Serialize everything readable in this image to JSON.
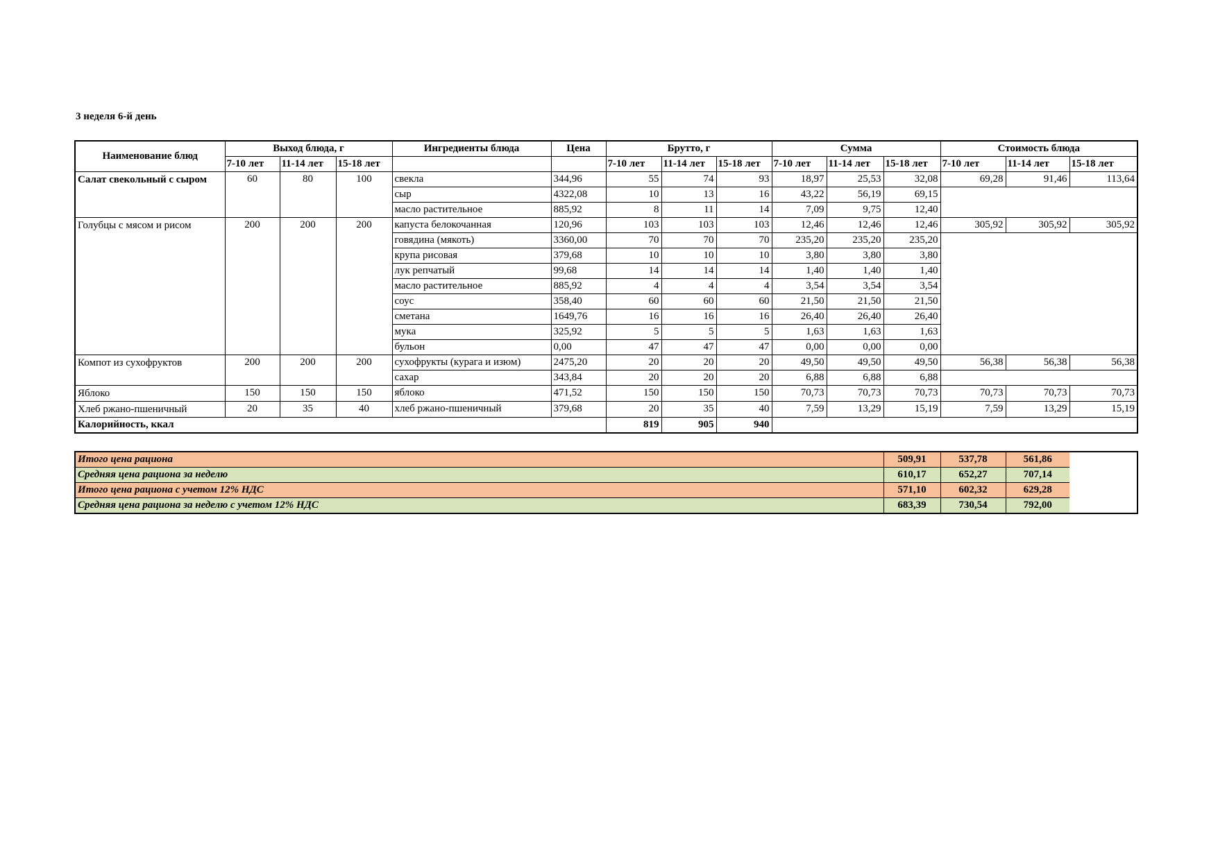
{
  "title": "3 неделя 6-й день",
  "colors": {
    "orange_row": "#F8C09A",
    "green_row": "#D8E4BC"
  },
  "headers": {
    "dish_name": "Наименование блюд",
    "yield": "Выход блюда, г",
    "ingredients": "Ингредиенты блюда",
    "price": "Цена",
    "brutto": "Брутто, г",
    "sum": "Сумма",
    "cost": "Стоимость блюда",
    "ages": [
      "7-10 лет",
      "11-14 лет",
      "15-18 лет"
    ]
  },
  "dishes": [
    {
      "name": "Салат свекольный с сыром",
      "bold": true,
      "yield": [
        "60",
        "80",
        "100"
      ],
      "cost": [
        "69,28",
        "91,46",
        "113,64"
      ],
      "ingredients": [
        {
          "name": "свекла",
          "price": "344,96",
          "brutto": [
            "55",
            "74",
            "93"
          ],
          "sum": [
            "18,97",
            "25,53",
            "32,08"
          ]
        },
        {
          "name": "сыр",
          "price": "4322,08",
          "brutto": [
            "10",
            "13",
            "16"
          ],
          "sum": [
            "43,22",
            "56,19",
            "69,15"
          ]
        },
        {
          "name": "масло растительное",
          "price": "885,92",
          "brutto": [
            "8",
            "11",
            "14"
          ],
          "sum": [
            "7,09",
            "9,75",
            "12,40"
          ]
        }
      ]
    },
    {
      "name": "Голубцы с мясом и рисом",
      "bold": false,
      "yield": [
        "200",
        "200",
        "200"
      ],
      "cost": [
        "305,92",
        "305,92",
        "305,92"
      ],
      "ingredients": [
        {
          "name": "капуста белокочанная",
          "price": "120,96",
          "brutto": [
            "103",
            "103",
            "103"
          ],
          "sum": [
            "12,46",
            "12,46",
            "12,46"
          ]
        },
        {
          "name": "говядина (мякоть)",
          "price": "3360,00",
          "brutto": [
            "70",
            "70",
            "70"
          ],
          "sum": [
            "235,20",
            "235,20",
            "235,20"
          ]
        },
        {
          "name": "крупа рисовая",
          "price": "379,68",
          "brutto": [
            "10",
            "10",
            "10"
          ],
          "sum": [
            "3,80",
            "3,80",
            "3,80"
          ]
        },
        {
          "name": "лук репчатый",
          "price": "99,68",
          "brutto": [
            "14",
            "14",
            "14"
          ],
          "sum": [
            "1,40",
            "1,40",
            "1,40"
          ]
        },
        {
          "name": "масло растительное",
          "price": "885,92",
          "brutto": [
            "4",
            "4",
            "4"
          ],
          "sum": [
            "3,54",
            "3,54",
            "3,54"
          ]
        },
        {
          "name": "соус",
          "price": "358,40",
          "brutto": [
            "60",
            "60",
            "60"
          ],
          "sum": [
            "21,50",
            "21,50",
            "21,50"
          ]
        },
        {
          "name": "сметана",
          "price": "1649,76",
          "brutto": [
            "16",
            "16",
            "16"
          ],
          "sum": [
            "26,40",
            "26,40",
            "26,40"
          ]
        },
        {
          "name": "мука",
          "price": "325,92",
          "brutto": [
            "5",
            "5",
            "5"
          ],
          "sum": [
            "1,63",
            "1,63",
            "1,63"
          ]
        },
        {
          "name": "бульон",
          "price": "0,00",
          "brutto": [
            "47",
            "47",
            "47"
          ],
          "sum": [
            "0,00",
            "0,00",
            "0,00"
          ]
        }
      ]
    },
    {
      "name": "Компот из сухофруктов",
      "bold": false,
      "yield": [
        "200",
        "200",
        "200"
      ],
      "cost": [
        "56,38",
        "56,38",
        "56,38"
      ],
      "ingredients": [
        {
          "name": "сухофрукты (курага и изюм)",
          "price": "2475,20",
          "brutto": [
            "20",
            "20",
            "20"
          ],
          "sum": [
            "49,50",
            "49,50",
            "49,50"
          ]
        },
        {
          "name": "сахар",
          "price": "343,84",
          "brutto": [
            "20",
            "20",
            "20"
          ],
          "sum": [
            "6,88",
            "6,88",
            "6,88"
          ]
        }
      ]
    },
    {
      "name": "Яблоко",
      "bold": false,
      "yield": [
        "150",
        "150",
        "150"
      ],
      "cost": [
        "70,73",
        "70,73",
        "70,73"
      ],
      "ingredients": [
        {
          "name": "яблоко",
          "price": "471,52",
          "brutto": [
            "150",
            "150",
            "150"
          ],
          "sum": [
            "70,73",
            "70,73",
            "70,73"
          ]
        }
      ]
    },
    {
      "name": "Хлеб ржано-пшеничный",
      "bold": false,
      "yield": [
        "20",
        "35",
        "40"
      ],
      "cost": [
        "7,59",
        "13,29",
        "15,19"
      ],
      "ingredients": [
        {
          "name": "хлеб ржано-пшеничный",
          "price": "379,68",
          "brutto": [
            "20",
            "35",
            "40"
          ],
          "sum": [
            "7,59",
            "13,29",
            "15,19"
          ]
        }
      ]
    }
  ],
  "calories": {
    "label": "Калорийность, ккал",
    "values": [
      "819",
      "905",
      "940"
    ]
  },
  "summary": [
    {
      "label": "Итого цена рациона",
      "color": "orange",
      "values": [
        "509,91",
        "537,78",
        "561,86"
      ]
    },
    {
      "label": "Средняя цена рациона за неделю",
      "color": "green",
      "values": [
        "610,17",
        "652,27",
        "707,14"
      ]
    },
    {
      "label": "Итого цена рациона с учетом 12% НДС",
      "color": "orange",
      "values": [
        "571,10",
        "602,32",
        "629,28"
      ]
    },
    {
      "label": "Средняя цена рациона за неделю с учетом 12% НДС",
      "color": "green",
      "values": [
        "683,39",
        "730,54",
        "792,00"
      ]
    }
  ]
}
